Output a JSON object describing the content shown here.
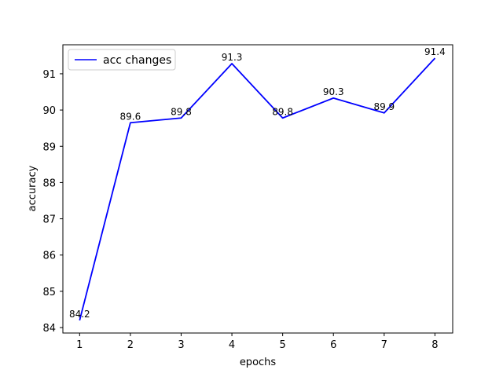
{
  "chart_data": {
    "type": "line",
    "title": "",
    "xlabel": "epochs",
    "ylabel": "accuracy",
    "x": [
      1,
      2,
      3,
      4,
      5,
      6,
      7,
      8
    ],
    "xlim": [
      0.67,
      8.35
    ],
    "ylim": [
      83.85,
      91.8
    ],
    "xticks": [
      1,
      2,
      3,
      4,
      5,
      6,
      7,
      8
    ],
    "yticks": [
      84,
      85,
      86,
      87,
      88,
      89,
      90,
      91
    ],
    "grid": false,
    "legend_position": "top-left",
    "series": [
      {
        "name": "acc changes",
        "color": "#0000ff",
        "values": [
          84.2,
          89.65,
          89.78,
          91.28,
          89.78,
          90.33,
          89.92,
          91.43
        ],
        "labels": [
          "84.2",
          "89.6",
          "89.8",
          "91.3",
          "89.8",
          "90.3",
          "89.9",
          "91.4"
        ]
      }
    ]
  }
}
